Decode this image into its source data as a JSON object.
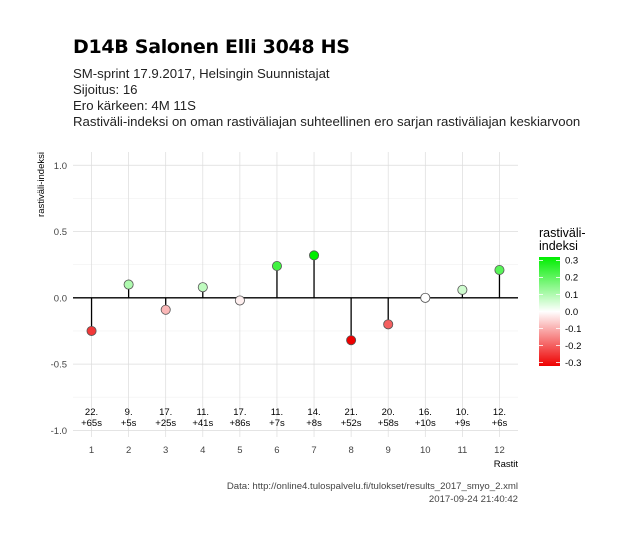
{
  "header": {
    "title": "D14B Salonen Elli 3048 HS",
    "subtitle_lines": [
      "SM-sprint 17.9.2017, Helsingin Suunnistajat",
      "Sijoitus: 16",
      "Ero kärkeen: 4M 11S",
      "Rastiväli-indeksi on oman rastiväliajan suhteellinen ero sarjan rastiväliajan keskiarvoon"
    ]
  },
  "caption": {
    "source": "Data: http://online4.tulospalvelu.fi/tulokset/results_2017_smyo_2.xml",
    "timestamp": "2017-09-24 21:40:42"
  },
  "chart_data": {
    "type": "scatter",
    "xlabel": "Rastit",
    "ylabel": "rastiväli-indeksi",
    "x": [
      1,
      2,
      3,
      4,
      5,
      6,
      7,
      8,
      9,
      10,
      11,
      12
    ],
    "values": [
      -0.25,
      0.1,
      -0.09,
      0.08,
      -0.02,
      0.24,
      0.32,
      -0.32,
      -0.2,
      0.0,
      0.06,
      0.21
    ],
    "annotations": [
      [
        "22.",
        "+65s"
      ],
      [
        "9.",
        "+5s"
      ],
      [
        "17.",
        "+25s"
      ],
      [
        "11.",
        "+41s"
      ],
      [
        "17.",
        "+86s"
      ],
      [
        "11.",
        "+7s"
      ],
      [
        "14.",
        "+8s"
      ],
      [
        "21.",
        "+52s"
      ],
      [
        "20.",
        "+58s"
      ],
      [
        "16.",
        "+10s"
      ],
      [
        "10.",
        "+9s"
      ],
      [
        "12.",
        "+6s"
      ]
    ],
    "ylim": [
      -1.05,
      1.1
    ],
    "xlim": [
      0.5,
      12.5
    ],
    "y_ticks": [
      "1.0",
      "0.5",
      "0.0",
      "-0.5",
      "-1.0"
    ],
    "y_tick_values": [
      1.0,
      0.5,
      0.0,
      -0.5,
      -1.0
    ],
    "x_ticks": [
      "1",
      "2",
      "3",
      "4",
      "5",
      "6",
      "7",
      "8",
      "9",
      "10",
      "11",
      "12"
    ],
    "grid": true,
    "legend": {
      "title": "rastiväli-\nindeksi",
      "position": "right",
      "ticks": [
        "0.3",
        "0.2",
        "0.1",
        "0.0",
        "-0.1",
        "-0.2",
        "-0.3"
      ],
      "tick_values": [
        0.3,
        0.2,
        0.1,
        0.0,
        -0.1,
        -0.2,
        -0.3
      ],
      "range": [
        -0.32,
        0.32
      ],
      "colors": {
        "high": "#00ee00",
        "mid": "#ffffff",
        "low": "#ee0000"
      }
    }
  }
}
